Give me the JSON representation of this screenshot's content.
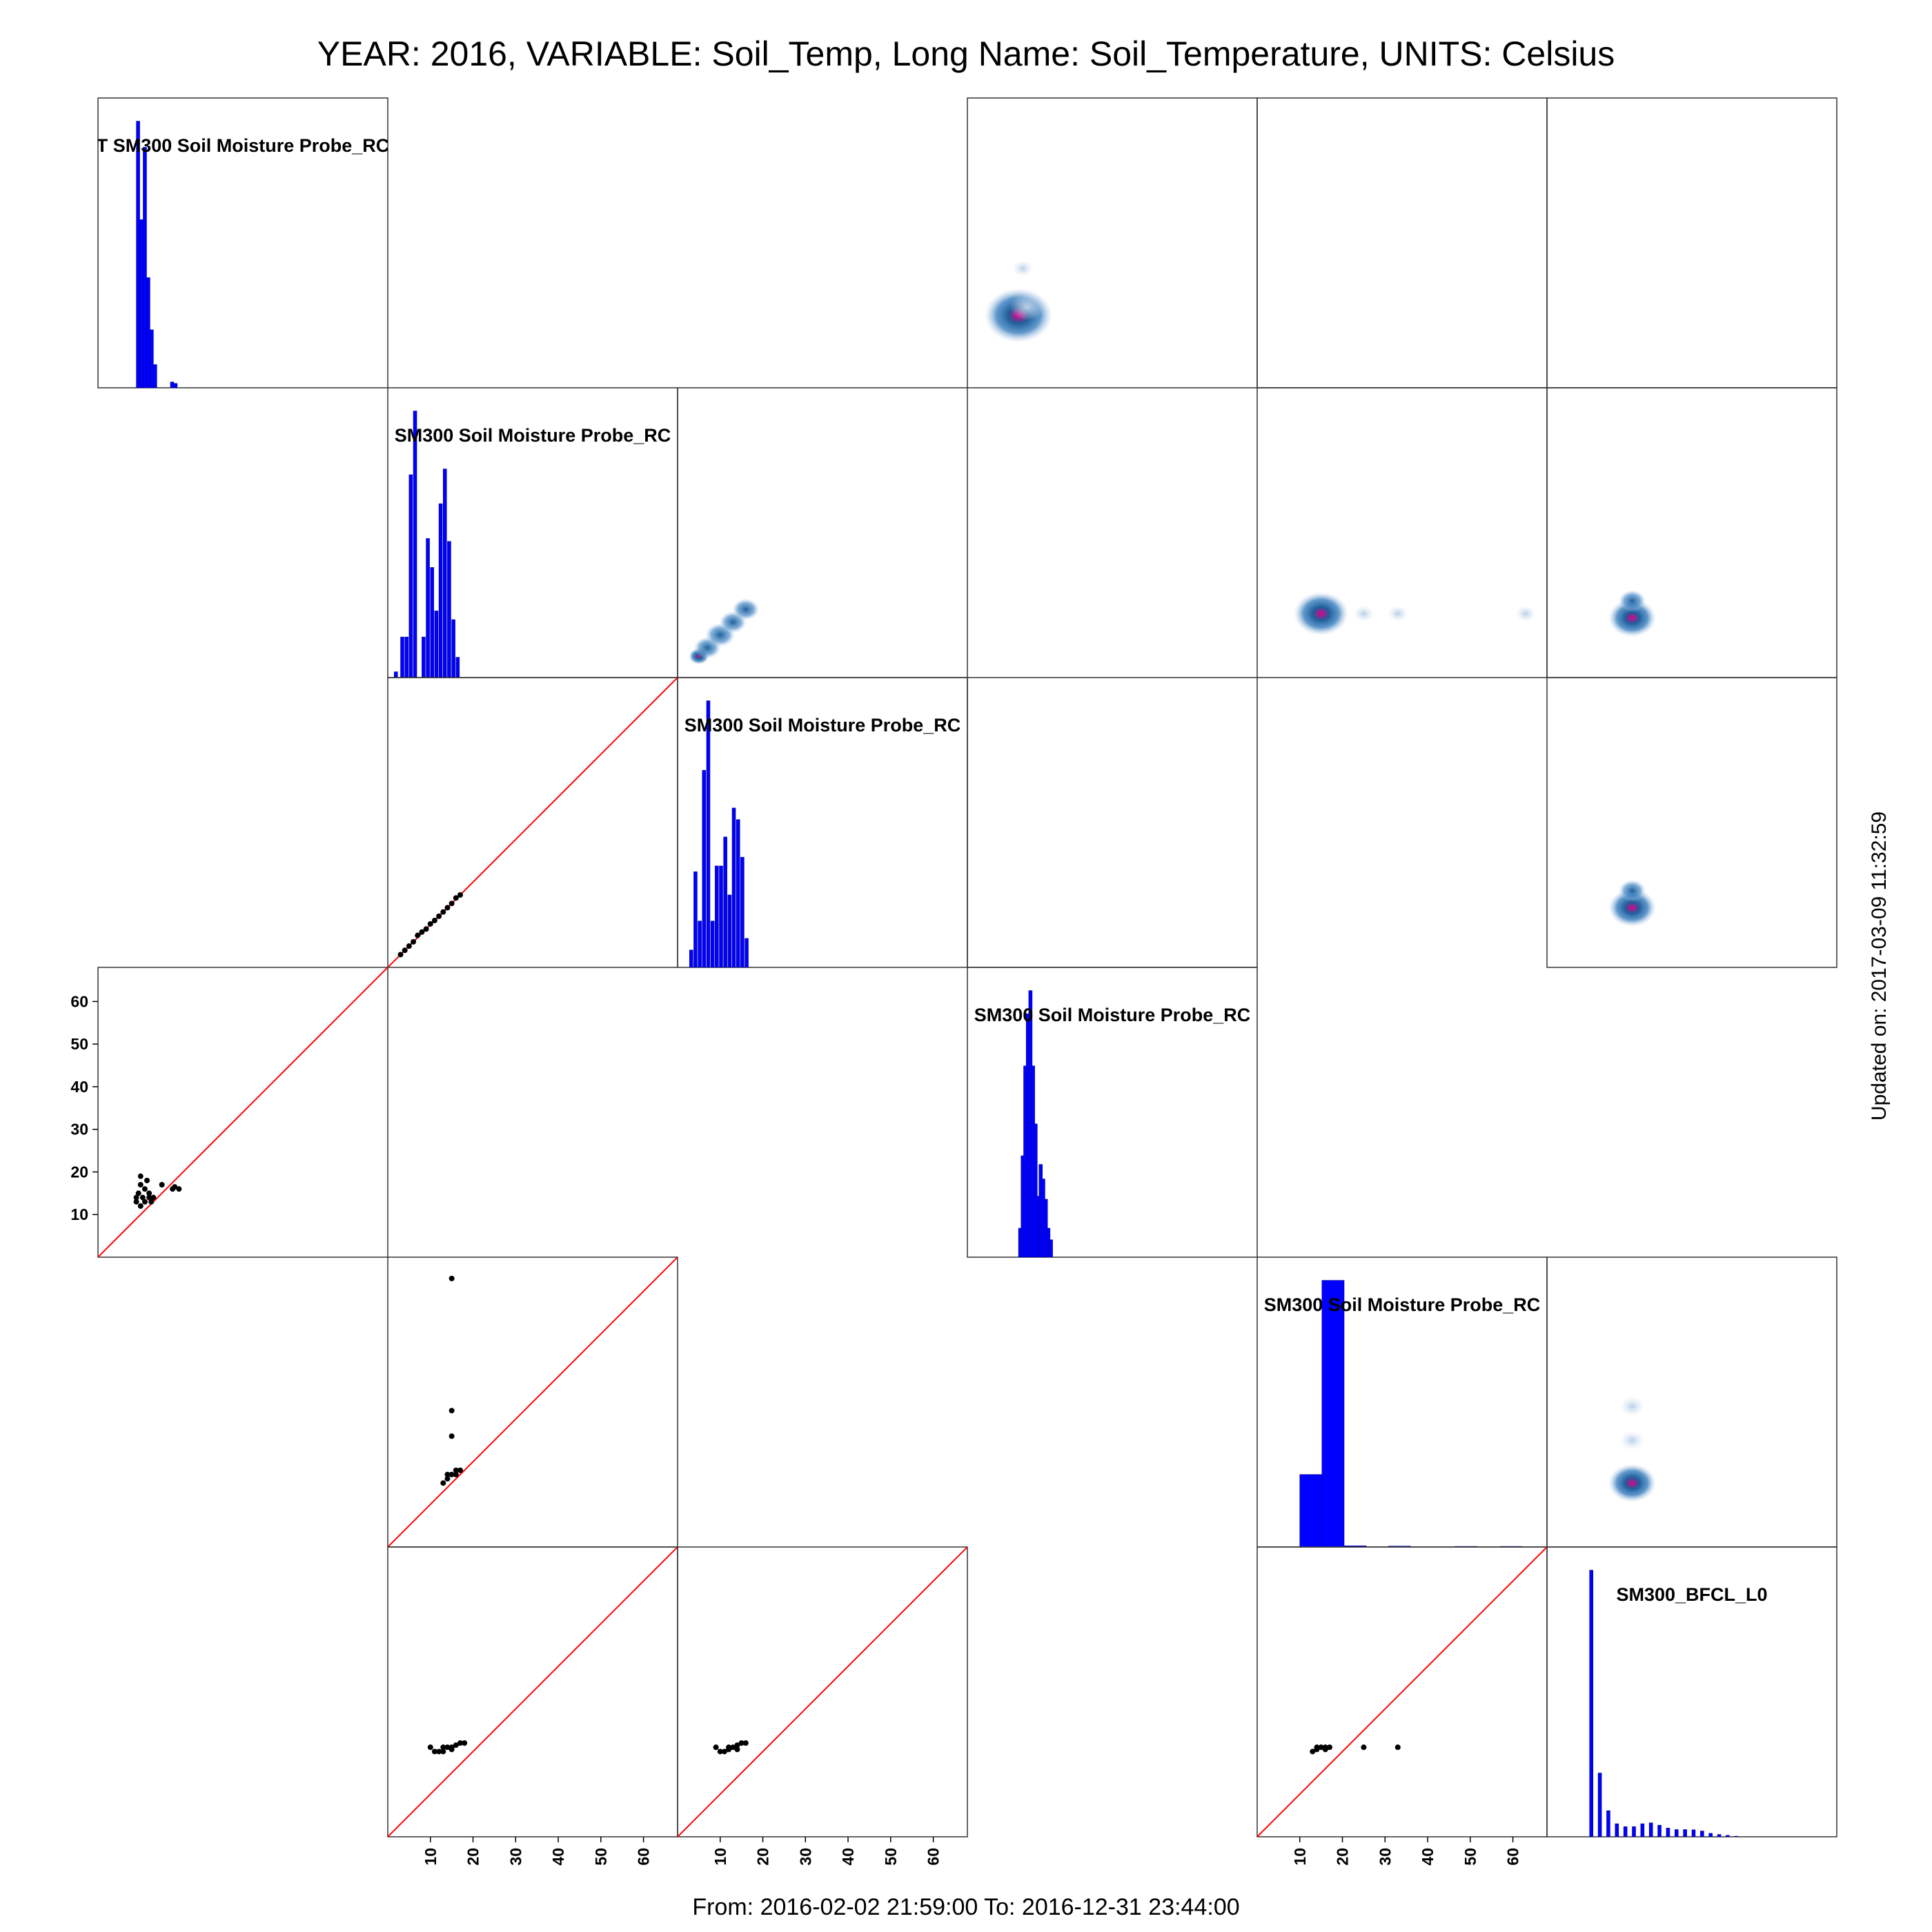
{
  "page": {
    "title": "YEAR: 2016, VARIABLE: Soil_Temp, Long Name: Soil_Temperature, UNITS: Celsius",
    "footer": "From: 2016-02-02 21:59:00 To: 2016-12-31 23:44:00",
    "updated": "Updated on: 2017-03-09 11:32:59"
  },
  "colors": {
    "histogram": "#0000ff",
    "histogram_edge": "#00008b",
    "identity_line": "#ff0000",
    "points": "#000000",
    "density_high": "#e0008a",
    "density_mid": "#1f5f9a",
    "density_low": "#b9cfe8",
    "frame": "#333333"
  },
  "chart_data": {
    "type": "scatter",
    "layout": "pairs-matrix 6x6",
    "axis_range": [
      0,
      68
    ],
    "axis_ticks": [
      10,
      20,
      30,
      40,
      50,
      60
    ],
    "diagonal": [
      {
        "row": 0,
        "col": 0,
        "label": "T SM300 Soil Moisture Probe_RC",
        "hist": [
          {
            "x": 9.0,
            "h": 0.92
          },
          {
            "x": 9.8,
            "h": 0.58
          },
          {
            "x": 10.6,
            "h": 0.83
          },
          {
            "x": 11.4,
            "h": 0.38
          },
          {
            "x": 12.2,
            "h": 0.2
          },
          {
            "x": 13.0,
            "h": 0.08
          },
          {
            "x": 17.0,
            "h": 0.02
          },
          {
            "x": 17.8,
            "h": 0.015
          }
        ]
      },
      {
        "row": 1,
        "col": 1,
        "label": "SM300 Soil Moisture Probe_RC",
        "hist": [
          {
            "x": 1.5,
            "h": 0.02
          },
          {
            "x": 3.0,
            "h": 0.14
          },
          {
            "x": 4.0,
            "h": 0.14
          },
          {
            "x": 5.0,
            "h": 0.7
          },
          {
            "x": 6.0,
            "h": 0.92
          },
          {
            "x": 8.0,
            "h": 0.14
          },
          {
            "x": 9.0,
            "h": 0.48
          },
          {
            "x": 10.0,
            "h": 0.38
          },
          {
            "x": 11.0,
            "h": 0.23
          },
          {
            "x": 12.0,
            "h": 0.6
          },
          {
            "x": 13.0,
            "h": 0.72
          },
          {
            "x": 14.0,
            "h": 0.47
          },
          {
            "x": 15.0,
            "h": 0.2
          },
          {
            "x": 16.0,
            "h": 0.07
          }
        ]
      },
      {
        "row": 2,
        "col": 2,
        "label": "SM300 Soil Moisture Probe_RC",
        "hist": [
          {
            "x": 2.8,
            "h": 0.06
          },
          {
            "x": 3.8,
            "h": 0.33
          },
          {
            "x": 4.8,
            "h": 0.16
          },
          {
            "x": 5.8,
            "h": 0.68
          },
          {
            "x": 6.8,
            "h": 0.92
          },
          {
            "x": 7.8,
            "h": 0.16
          },
          {
            "x": 8.8,
            "h": 0.35
          },
          {
            "x": 9.8,
            "h": 0.35
          },
          {
            "x": 10.8,
            "h": 0.45
          },
          {
            "x": 11.8,
            "h": 0.25
          },
          {
            "x": 12.8,
            "h": 0.55
          },
          {
            "x": 13.8,
            "h": 0.51
          },
          {
            "x": 14.8,
            "h": 0.38
          },
          {
            "x": 15.8,
            "h": 0.1
          }
        ]
      },
      {
        "row": 3,
        "col": 3,
        "label": "SM300 Soil Moisture Probe_RC",
        "hist": [
          {
            "x": 12.0,
            "h": 0.1
          },
          {
            "x": 12.6,
            "h": 0.35
          },
          {
            "x": 13.2,
            "h": 0.66
          },
          {
            "x": 13.8,
            "h": 0.84
          },
          {
            "x": 14.4,
            "h": 0.92
          },
          {
            "x": 15.0,
            "h": 0.66
          },
          {
            "x": 15.6,
            "h": 0.46
          },
          {
            "x": 16.2,
            "h": 0.21
          },
          {
            "x": 16.8,
            "h": 0.32
          },
          {
            "x": 17.4,
            "h": 0.27
          },
          {
            "x": 18.0,
            "h": 0.2
          },
          {
            "x": 18.6,
            "h": 0.1
          },
          {
            "x": 19.2,
            "h": 0.06
          }
        ]
      },
      {
        "row": 4,
        "col": 4,
        "label": "SM300 Soil Moisture Probe_RC",
        "hist": [
          {
            "x": 10.0,
            "w": 5.2,
            "h": 0.25
          },
          {
            "x": 15.2,
            "w": 5.2,
            "h": 0.92
          },
          {
            "x": 20.4,
            "w": 5.2,
            "h": 0.004
          },
          {
            "x": 30.8,
            "w": 5.2,
            "h": 0.003
          },
          {
            "x": 46.4,
            "w": 5.2,
            "h": 0.002
          },
          {
            "x": 57.0,
            "w": 5.2,
            "h": 0.002
          }
        ]
      },
      {
        "row": 5,
        "col": 5,
        "label": "SM300_BFCL_L0",
        "hist": [
          {
            "x": 10.0,
            "h": 0.92
          },
          {
            "x": 12.0,
            "h": 0.22
          },
          {
            "x": 14.0,
            "h": 0.09
          },
          {
            "x": 16.0,
            "h": 0.045
          },
          {
            "x": 18.0,
            "h": 0.035
          },
          {
            "x": 20.0,
            "h": 0.035
          },
          {
            "x": 22.0,
            "h": 0.045
          },
          {
            "x": 24.0,
            "h": 0.048
          },
          {
            "x": 26.0,
            "h": 0.04
          },
          {
            "x": 28.0,
            "h": 0.03
          },
          {
            "x": 30.0,
            "h": 0.025
          },
          {
            "x": 32.0,
            "h": 0.025
          },
          {
            "x": 34.0,
            "h": 0.024
          },
          {
            "x": 36.0,
            "h": 0.02
          },
          {
            "x": 38.0,
            "h": 0.012
          },
          {
            "x": 40.0,
            "h": 0.008
          },
          {
            "x": 42.0,
            "h": 0.005
          },
          {
            "x": 44.0,
            "h": 0.002
          }
        ]
      }
    ],
    "scatter_panels": [
      {
        "row": 2,
        "col": 1,
        "points": [
          [
            3,
            3
          ],
          [
            4,
            4
          ],
          [
            5,
            5
          ],
          [
            6,
            6
          ],
          [
            7,
            7.5
          ],
          [
            8,
            8.3
          ],
          [
            9,
            9
          ],
          [
            10,
            10.2
          ],
          [
            11,
            11
          ],
          [
            12,
            12
          ],
          [
            13,
            13
          ],
          [
            14,
            14
          ],
          [
            15,
            15
          ],
          [
            16,
            16.3
          ],
          [
            17,
            17
          ]
        ]
      },
      {
        "row": 3,
        "col": 0,
        "points": [
          [
            9,
            13
          ],
          [
            9.5,
            15
          ],
          [
            10,
            17
          ],
          [
            10,
            19
          ],
          [
            10.5,
            14
          ],
          [
            11,
            16
          ],
          [
            11,
            13
          ],
          [
            11.5,
            18
          ],
          [
            12,
            15
          ],
          [
            12,
            14
          ],
          [
            12.5,
            13
          ],
          [
            13,
            14
          ],
          [
            9,
            14
          ],
          [
            10,
            12
          ],
          [
            15,
            17
          ],
          [
            17.5,
            16
          ],
          [
            18,
            16.5
          ],
          [
            19,
            16
          ]
        ]
      },
      {
        "row": 4,
        "col": 1,
        "points": [
          [
            15,
            63
          ],
          [
            15,
            32
          ],
          [
            15,
            26
          ],
          [
            13,
            15
          ],
          [
            14,
            16
          ],
          [
            15,
            17
          ],
          [
            16,
            18
          ],
          [
            17,
            18
          ],
          [
            14,
            17
          ],
          [
            16,
            17
          ]
        ]
      },
      {
        "row": 5,
        "col": 1,
        "points": [
          [
            10,
            21
          ],
          [
            11,
            20
          ],
          [
            12,
            20
          ],
          [
            13,
            20
          ],
          [
            14,
            21
          ],
          [
            15,
            21
          ],
          [
            16,
            21.5
          ],
          [
            17,
            22
          ],
          [
            18,
            22
          ],
          [
            13,
            21
          ],
          [
            15,
            20.5
          ]
        ]
      },
      {
        "row": 5,
        "col": 2,
        "points": [
          [
            9,
            21
          ],
          [
            10,
            20
          ],
          [
            11,
            20
          ],
          [
            12,
            20.5
          ],
          [
            13,
            21
          ],
          [
            14,
            21.5
          ],
          [
            15,
            22
          ],
          [
            16,
            22
          ],
          [
            12,
            21
          ],
          [
            14,
            20.5
          ]
        ]
      },
      {
        "row": 5,
        "col": 4,
        "points": [
          [
            13,
            20
          ],
          [
            14,
            20.5
          ],
          [
            15,
            21
          ],
          [
            16,
            21
          ],
          [
            17,
            21
          ],
          [
            14,
            21
          ],
          [
            16,
            20.5
          ],
          [
            25,
            21
          ],
          [
            33,
            21
          ]
        ]
      }
    ],
    "density_panels": [
      {
        "row": 0,
        "col": 3,
        "blobs": [
          [
            12,
            17,
            5,
            "high"
          ],
          [
            14,
            19,
            2.5,
            "low"
          ],
          [
            13,
            28,
            1.5,
            "low"
          ]
        ]
      },
      {
        "row": 1,
        "col": 2,
        "blobs": [
          [
            5,
            5,
            1.5,
            "high"
          ],
          [
            7,
            7,
            2,
            "mid"
          ],
          [
            10,
            10,
            2.2,
            "mid"
          ],
          [
            13,
            13,
            2,
            "mid"
          ],
          [
            16,
            16,
            2,
            "mid"
          ]
        ]
      },
      {
        "row": 1,
        "col": 4,
        "blobs": [
          [
            15,
            15,
            4,
            "high"
          ],
          [
            25,
            15,
            1.5,
            "low"
          ],
          [
            33,
            15,
            1.5,
            "low"
          ],
          [
            63,
            15,
            1.5,
            "low"
          ]
        ]
      },
      {
        "row": 1,
        "col": 5,
        "blobs": [
          [
            20,
            14,
            3.5,
            "high"
          ],
          [
            20,
            18,
            2,
            "mid"
          ]
        ]
      },
      {
        "row": 2,
        "col": 5,
        "blobs": [
          [
            20,
            14,
            3.5,
            "high"
          ],
          [
            20,
            18,
            2,
            "mid"
          ]
        ]
      },
      {
        "row": 4,
        "col": 5,
        "blobs": [
          [
            20,
            15,
            3.5,
            "high"
          ],
          [
            20,
            25,
            1.8,
            "low"
          ],
          [
            20,
            33,
            1.8,
            "low"
          ]
        ]
      }
    ],
    "empty_panels": [
      [
        0,
        4
      ],
      [
        0,
        5
      ],
      [
        2,
        3
      ]
    ]
  }
}
